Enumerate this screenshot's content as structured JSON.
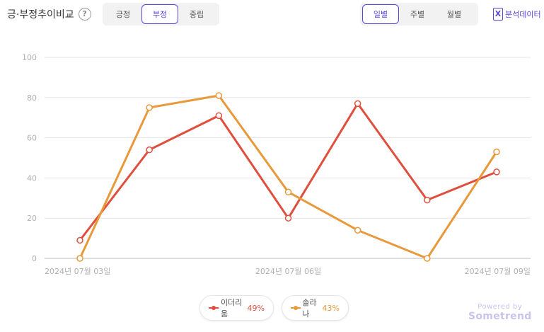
{
  "header": {
    "title": "긍·부정추이비교",
    "help_icon": "question-circle-icon",
    "sentiment_tabs": [
      {
        "label": "긍정",
        "active": false
      },
      {
        "label": "부정",
        "active": true
      },
      {
        "label": "중립",
        "active": false
      }
    ],
    "period_tabs": [
      {
        "label": "일별",
        "active": true
      },
      {
        "label": "주별",
        "active": false
      },
      {
        "label": "월별",
        "active": false
      }
    ],
    "export_label": "분석데이터",
    "export_icon": "excel-icon"
  },
  "chart_data": {
    "type": "line",
    "x": [
      "2024-07-03",
      "2024-07-04",
      "2024-07-05",
      "2024-07-06",
      "2024-07-07",
      "2024-07-08",
      "2024-07-09"
    ],
    "x_tick_labels": [
      "2024년 07월 03일",
      "2024년 07월 06일",
      "2024년 07월 09일"
    ],
    "x_tick_indices": [
      0,
      3,
      6
    ],
    "y_ticks": [
      0,
      20,
      40,
      60,
      80,
      100
    ],
    "ylim": [
      0,
      100
    ],
    "grid": true,
    "series": [
      {
        "name": "이더리움",
        "percent": "49%",
        "color": "#e04f3e",
        "values": [
          9,
          54,
          71,
          20,
          77,
          29,
          43
        ]
      },
      {
        "name": "솔라나",
        "percent": "43%",
        "color": "#e8993a",
        "values": [
          0,
          75,
          81,
          33,
          14,
          0,
          53
        ]
      }
    ],
    "legend_position": "bottom-center"
  },
  "footer": {
    "powered_by": "Powered by",
    "brand": "Sometrend"
  }
}
